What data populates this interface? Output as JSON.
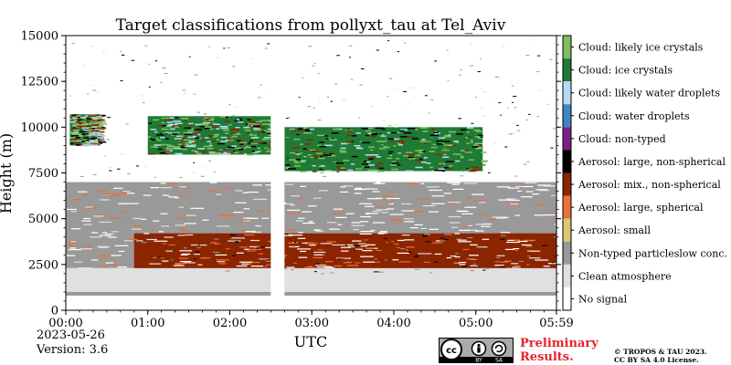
{
  "chart_data": {
    "type": "heatmap",
    "title": "Target classifications from pollyxt_tau at Tel_Aviv",
    "xlabel": "UTC",
    "ylabel": "Height (m)",
    "xlim": [
      "00:00",
      "05:59"
    ],
    "ylim": [
      0,
      15000
    ],
    "x_ticks": [
      "00:00",
      "01:00",
      "02:00",
      "03:00",
      "04:00",
      "05:00",
      "05:59"
    ],
    "y_ticks": [
      0,
      2500,
      5000,
      7500,
      10000,
      12500,
      15000
    ],
    "data_gap": [
      "02:30",
      "02:40"
    ],
    "legend_position": "right",
    "classes": [
      {
        "label": "Cloud: likely ice crystals",
        "color": "#7fbf5f"
      },
      {
        "label": "Cloud: ice crystals",
        "color": "#1e7a34"
      },
      {
        "label": "Cloud: likely water droplets",
        "color": "#b7d9f5"
      },
      {
        "label": "Cloud: water droplets",
        "color": "#3f86c4"
      },
      {
        "label": "Cloud: non-typed",
        "color": "#7a1f86"
      },
      {
        "label": "Aerosol: large, non-spherical",
        "color": "#000000"
      },
      {
        "label": "Aerosol: mix., non-spherical",
        "color": "#8b2500"
      },
      {
        "label": "Aerosol: large, spherical",
        "color": "#e8703a"
      },
      {
        "label": "Aerosol: small",
        "color": "#dcc774"
      },
      {
        "label": "Non-typed particleslow conc.",
        "color": "#999999"
      },
      {
        "label": "Clean atmosphere",
        "color": "#e0e0e0"
      },
      {
        "label": "No signal",
        "color": "#ffffff"
      }
    ],
    "layers": [
      {
        "class": "Aerosol: mix., non-spherical",
        "t_start": "00:50",
        "t_end": "05:59",
        "bottom_m": 2000,
        "top_m": 4200
      },
      {
        "class": "Non-typed particleslow conc.",
        "t_start": "00:00",
        "t_end": "05:59",
        "bottom_m": 2300,
        "top_m": 7000
      },
      {
        "class": "Clean atmosphere",
        "t_start": "00:00",
        "t_end": "05:59",
        "bottom_m": 1000,
        "top_m": 2300
      },
      {
        "class": "Non-typed particleslow conc.",
        "t_start": "00:00",
        "t_end": "05:59",
        "bottom_m": 800,
        "top_m": 1000
      },
      {
        "class": "Cloud: ice crystals",
        "t_start": "00:03",
        "t_end": "00:25",
        "bottom_m": 9000,
        "top_m": 10700
      },
      {
        "class": "Cloud: ice crystals",
        "t_start": "01:00",
        "t_end": "02:30",
        "bottom_m": 8500,
        "top_m": 10600
      },
      {
        "class": "Cloud: ice crystals",
        "t_start": "02:40",
        "t_end": "05:05",
        "bottom_m": 7600,
        "top_m": 10000
      }
    ]
  },
  "footer": {
    "date": "2023-05-26",
    "version": "Version: 3.6",
    "preliminary_line1": "Preliminary",
    "preliminary_line2": "Results.",
    "copyright_line1": "© TROPOS & TAU 2023.",
    "copyright_line2": "CC BY SA 4.0 License.",
    "license_badge": {
      "cc": "cc",
      "by": "BY",
      "sa": "SA"
    }
  }
}
